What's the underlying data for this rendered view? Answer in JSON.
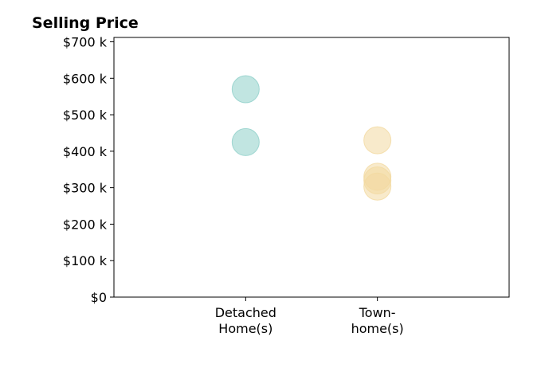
{
  "chart_data": {
    "type": "scatter",
    "title": "Selling Price",
    "xlabel": "",
    "ylabel": "",
    "categories": [
      [
        "Detached",
        "Home(s)"
      ],
      [
        "Town-",
        "home(s)"
      ]
    ],
    "y_ticks": [
      {
        "value": 0,
        "label": "$0"
      },
      {
        "value": 100000,
        "label": "$100 k"
      },
      {
        "value": 200000,
        "label": "$200 k"
      },
      {
        "value": 300000,
        "label": "$300 k"
      },
      {
        "value": 400000,
        "label": "$400 k"
      },
      {
        "value": 500000,
        "label": "$500 k"
      },
      {
        "value": 600000,
        "label": "$600 k"
      },
      {
        "value": 700000,
        "label": "$700 k"
      }
    ],
    "ylim": [
      0,
      712000
    ],
    "xlim": [
      -1,
      2
    ],
    "grid": false,
    "series": [
      {
        "category_index": 0,
        "color": "#8ecfc9",
        "values": [
          570000,
          425000
        ]
      },
      {
        "category_index": 1,
        "color": "#f2d9a0",
        "values": [
          430000,
          330000,
          320000,
          303000
        ]
      }
    ]
  }
}
